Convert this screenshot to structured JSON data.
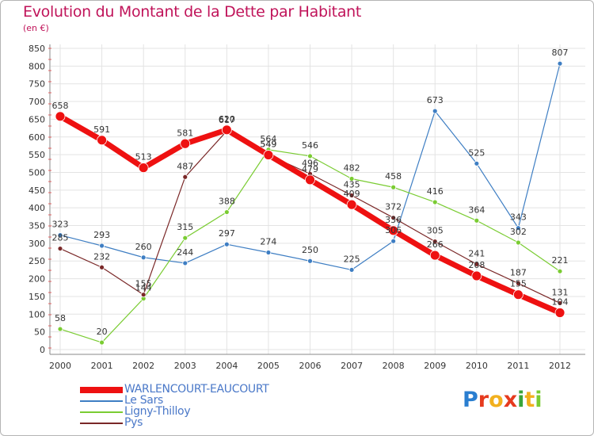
{
  "chart_data": {
    "type": "line",
    "title": "Evolution du Montant de la Dette par Habitant",
    "subtitle": "(en €)",
    "x": [
      "2000",
      "2001",
      "2002",
      "2003",
      "2004",
      "2005",
      "2006",
      "2007",
      "2008",
      "2009",
      "2010",
      "2011",
      "2012"
    ],
    "yticks": [
      0,
      50,
      100,
      150,
      200,
      250,
      300,
      350,
      400,
      450,
      500,
      550,
      600,
      650,
      700,
      750,
      800,
      850
    ],
    "ylim": [
      0,
      850
    ],
    "grid": true,
    "legend_position": "bottom-left",
    "series": [
      {
        "name": "Le Sars",
        "color": "#3e7ec3",
        "width": 1.2,
        "values": [
          323,
          293,
          260,
          244,
          297,
          274,
          250,
          225,
          306,
          673,
          525,
          343,
          807
        ]
      },
      {
        "name": "Ligny-Thilloy",
        "color": "#7acc32",
        "width": 1.2,
        "values": [
          58,
          20,
          144,
          315,
          388,
          564,
          546,
          482,
          458,
          416,
          364,
          302,
          221
        ]
      },
      {
        "name": "Pys",
        "color": "#7a2828",
        "width": 1.2,
        "values": [
          285,
          232,
          155,
          487,
          617,
          549,
          496,
          435,
          372,
          305,
          241,
          187,
          131
        ]
      },
      {
        "name": "WARLENCOURT-EAUCOURT",
        "color": "#ee1111",
        "width": 7,
        "values": [
          658,
          591,
          513,
          581,
          620,
          549,
          479,
          409,
          336,
          266,
          208,
          155,
          104
        ]
      }
    ],
    "legend_order": [
      "WARLENCOURT-EAUCOURT",
      "Le Sars",
      "Ligny-Thilloy",
      "Pys"
    ]
  },
  "logo": {
    "letters": [
      "P",
      "r",
      "o",
      "x",
      "i",
      "t",
      "i"
    ],
    "colors": [
      "#2a7ed0",
      "#e63a1e",
      "#f2b01e",
      "#e63a1e",
      "#3aa53a",
      "#f2b01e",
      "#7acc32"
    ]
  }
}
